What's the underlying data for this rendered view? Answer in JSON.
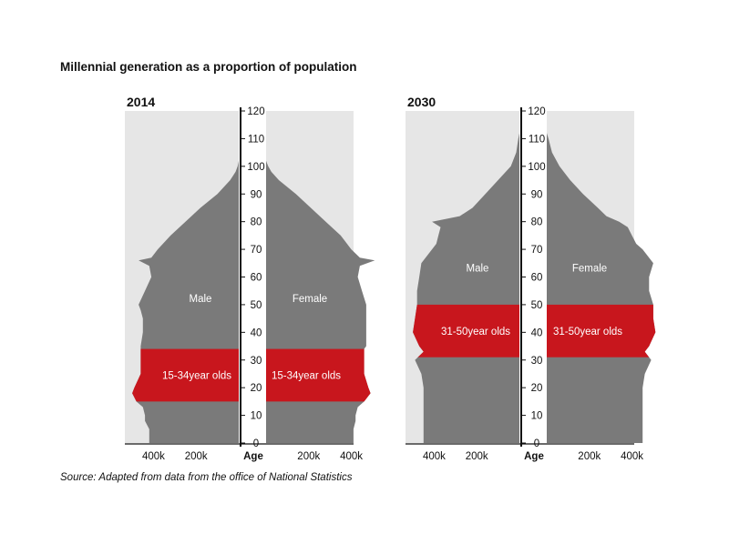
{
  "title": "Millennial generation as a proportion of population",
  "source": "Source: Adapted from data from the office of National Statistics",
  "colors": {
    "population": "#7a7a7a",
    "millennial": "#c8161d",
    "background": "#e6e6e6",
    "axis": "#111111"
  },
  "chart_data": [
    {
      "type": "population_pyramid",
      "title": "2014",
      "ylabel": "Age",
      "ylim": [
        0,
        120
      ],
      "yticks": [
        0,
        10,
        20,
        30,
        40,
        50,
        60,
        70,
        80,
        90,
        100,
        110,
        120
      ],
      "xticks": [
        {
          "value": 200000,
          "label": "200k"
        },
        {
          "value": 400000,
          "label": "400k"
        }
      ],
      "xlim": [
        0,
        620000
      ],
      "male_label": "Male",
      "female_label": "Female",
      "highlight": {
        "from_age": 15,
        "to_age": 34,
        "male_label": "15-34year olds",
        "female_label": "15-34year olds"
      },
      "ages": [
        0,
        5,
        8,
        10,
        13,
        15,
        18,
        20,
        25,
        30,
        34,
        35,
        40,
        45,
        48,
        50,
        55,
        60,
        64,
        66,
        67,
        70,
        75,
        80,
        85,
        90,
        95,
        98,
        100,
        102
      ],
      "male": [
        420000,
        420000,
        440000,
        440000,
        450000,
        480000,
        500000,
        490000,
        460000,
        460000,
        460000,
        460000,
        450000,
        450000,
        460000,
        470000,
        440000,
        410000,
        420000,
        470000,
        410000,
        380000,
        320000,
        250000,
        180000,
        100000,
        40000,
        15000,
        5000,
        0
      ],
      "female": [
        410000,
        410000,
        420000,
        420000,
        430000,
        460000,
        490000,
        480000,
        460000,
        460000,
        460000,
        470000,
        470000,
        470000,
        470000,
        470000,
        450000,
        430000,
        440000,
        510000,
        440000,
        400000,
        350000,
        280000,
        210000,
        140000,
        60000,
        25000,
        10000,
        0
      ]
    },
    {
      "type": "population_pyramid",
      "title": "2030",
      "ylabel": "Age",
      "ylim": [
        0,
        120
      ],
      "yticks": [
        0,
        10,
        20,
        30,
        40,
        50,
        60,
        70,
        80,
        90,
        100,
        110,
        120
      ],
      "xticks": [
        {
          "value": 200000,
          "label": "200k"
        },
        {
          "value": 400000,
          "label": "400k"
        }
      ],
      "xlim": [
        0,
        620000
      ],
      "male_label": "Male",
      "female_label": "Female",
      "highlight": {
        "from_age": 31,
        "to_age": 50,
        "male_label": "31-50year olds",
        "female_label": "31-50year olds"
      },
      "ages": [
        0,
        5,
        10,
        15,
        20,
        25,
        30,
        33,
        35,
        40,
        45,
        50,
        55,
        60,
        65,
        70,
        72,
        75,
        78,
        80,
        82,
        85,
        90,
        95,
        100,
        105,
        110,
        112
      ],
      "male": [
        450000,
        450000,
        450000,
        450000,
        450000,
        460000,
        490000,
        450000,
        470000,
        500000,
        490000,
        480000,
        480000,
        470000,
        460000,
        410000,
        390000,
        380000,
        370000,
        410000,
        280000,
        220000,
        160000,
        100000,
        40000,
        15000,
        5000,
        0
      ],
      "female": [
        450000,
        450000,
        450000,
        450000,
        450000,
        460000,
        490000,
        460000,
        480000,
        510000,
        500000,
        500000,
        480000,
        480000,
        500000,
        450000,
        420000,
        400000,
        380000,
        340000,
        280000,
        240000,
        170000,
        110000,
        60000,
        25000,
        8000,
        0
      ]
    }
  ]
}
